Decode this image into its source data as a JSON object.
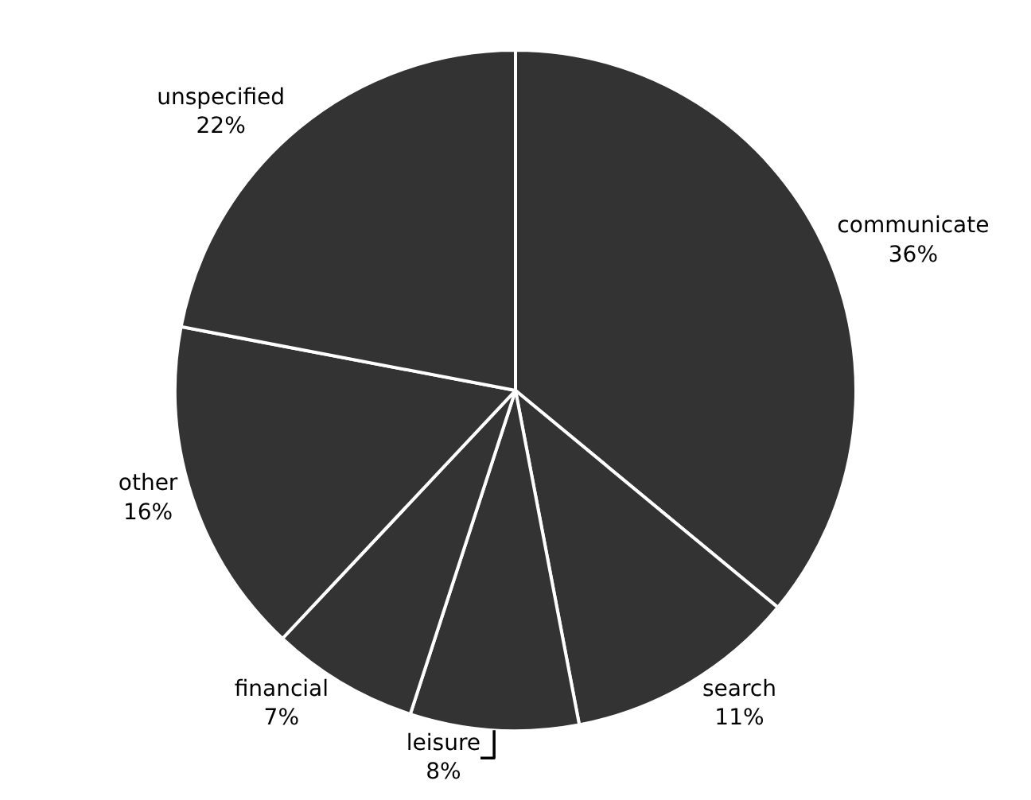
{
  "chart_data": {
    "type": "pie",
    "categories": [
      "communicate",
      "search",
      "leisure",
      "financial",
      "other",
      "unspecified"
    ],
    "values": [
      36,
      11,
      8,
      7,
      16,
      22
    ],
    "value_labels": [
      "36%",
      "11%",
      "8%",
      "7%",
      "16%",
      "22%"
    ],
    "colors": [
      "#333333",
      "#333333",
      "#333333",
      "#333333",
      "#333333",
      "#333333"
    ],
    "legend": false
  }
}
